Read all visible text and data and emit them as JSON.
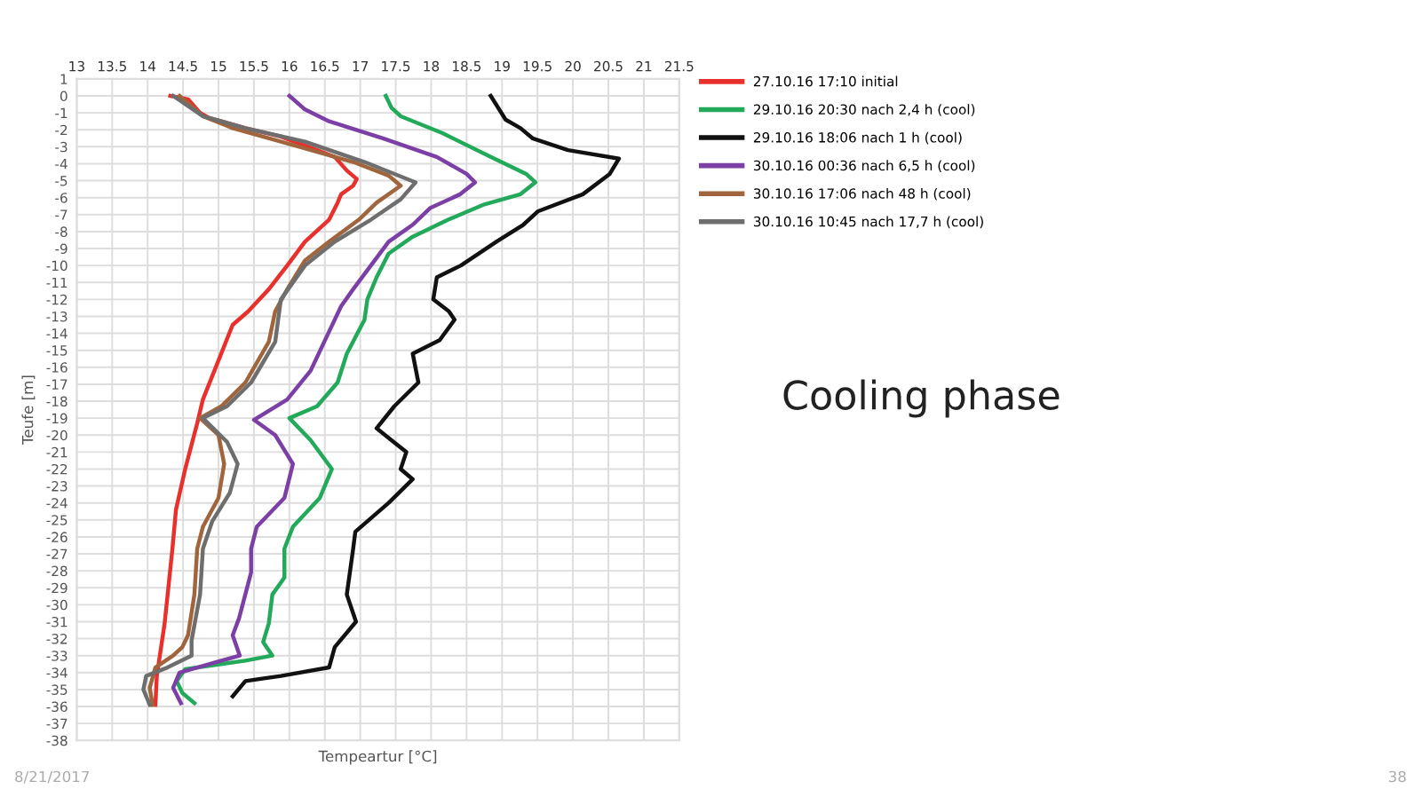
{
  "chart_data": {
    "type": "line",
    "title": "Cooling phase",
    "xlabel": "Tempeartur [°C]",
    "ylabel": "Teufe [m]",
    "annotations": [
      "8/21/2017",
      "38"
    ],
    "xlim": [
      13,
      21.5
    ],
    "xticks": [
      13,
      13.5,
      14,
      14.5,
      15,
      15.5,
      16,
      16.5,
      17,
      17.5,
      18,
      18.5,
      19,
      19.5,
      20,
      20.5,
      21,
      21.5
    ],
    "ylim": [
      -38,
      1
    ],
    "yticks": [
      -38,
      -37,
      -36,
      -35,
      -34,
      -33,
      -32,
      -31,
      -30,
      -29,
      -28,
      -27,
      -26,
      -25,
      -24,
      -23,
      -22,
      -21,
      -20,
      -19,
      -18,
      -17,
      -16,
      -15,
      -14,
      -13,
      -12,
      -11,
      -10,
      -9,
      -8,
      -7,
      -6,
      -5,
      -4,
      -3,
      -2,
      -1,
      0,
      1
    ],
    "grid": true,
    "legend": "right",
    "marker": "none",
    "line_style": "solid",
    "series": [
      {
        "name": "27.10.16 17:10 initial",
        "color": "#e8302c",
        "x": [
          14.32,
          14.57,
          14.74,
          14.87,
          15.38,
          15.88,
          16.39,
          16.64,
          16.81,
          16.95,
          16.9,
          16.73,
          16.68,
          16.56,
          16.22,
          15.97,
          15.71,
          15.42,
          15.2,
          15.0,
          14.78,
          14.7,
          14.53,
          14.4,
          14.35,
          14.24,
          14.13,
          14.11
        ],
        "values": [
          0,
          -0.2,
          -1,
          -1.3,
          -1.9,
          -2.4,
          -3.2,
          -3.6,
          -4.4,
          -4.9,
          -5.3,
          -5.8,
          -6.3,
          -7.3,
          -8.6,
          -10,
          -11.4,
          -12.7,
          -13.5,
          -15.6,
          -17.9,
          -19.3,
          -22,
          -24.4,
          -26.7,
          -31.1,
          -34.2,
          -35.9
        ]
      },
      {
        "name": "29.10.16 20:30 nach 2,4 h (cool)",
        "color": "#22a95a",
        "x": [
          17.36,
          17.44,
          17.57,
          18.16,
          18.84,
          19.34,
          19.47,
          19.26,
          18.75,
          18.24,
          17.74,
          17.4,
          17.23,
          17.1,
          17.06,
          16.81,
          16.68,
          16.39,
          16.0,
          16.3,
          16.6,
          16.43,
          16.05,
          15.93,
          15.93,
          15.76,
          15.71,
          15.63,
          15.76,
          15.38,
          14.53,
          14.41,
          14.49,
          14.66
        ],
        "values": [
          0,
          -0.7,
          -1.2,
          -2.2,
          -3.6,
          -4.6,
          -5.1,
          -5.8,
          -6.4,
          -7.3,
          -8.3,
          -9.3,
          -10.7,
          -12,
          -13.2,
          -15.2,
          -16.9,
          -18.3,
          -19,
          -20.3,
          -22,
          -23.7,
          -25.4,
          -26.7,
          -28.4,
          -29.4,
          -31.1,
          -32.2,
          -33,
          -33.3,
          -33.8,
          -34.5,
          -35.2,
          -35.8
        ]
      },
      {
        "name": "29.10.16 18:06 nach 1 h (cool)",
        "color": "#111111",
        "x": [
          18.84,
          19.05,
          19.26,
          19.43,
          19.93,
          20.65,
          20.52,
          20.14,
          19.51,
          19.3,
          18.92,
          18.42,
          18.08,
          18.03,
          18.25,
          18.33,
          18.12,
          17.74,
          17.82,
          17.48,
          17.23,
          17.44,
          17.65,
          17.57,
          17.74,
          17.4,
          16.93,
          16.9,
          16.81,
          16.94,
          16.64,
          16.56,
          15.88,
          15.38,
          15.2
        ],
        "values": [
          0,
          -1.4,
          -1.9,
          -2.5,
          -3.2,
          -3.7,
          -4.6,
          -5.8,
          -6.8,
          -7.6,
          -8.6,
          -10,
          -10.7,
          -12,
          -12.7,
          -13.2,
          -14.4,
          -15.2,
          -16.9,
          -18.3,
          -19.6,
          -20.3,
          -21,
          -22,
          -22.6,
          -24,
          -25.7,
          -26.7,
          -29.4,
          -31,
          -32.5,
          -33.7,
          -34.2,
          -34.5,
          -35.4
        ]
      },
      {
        "name": "30.10.16 00:36 nach 6,5 h (cool)",
        "color": "#7b3fa6",
        "x": [
          16.0,
          16.22,
          16.56,
          17.32,
          18.08,
          18.5,
          18.62,
          18.41,
          17.99,
          17.74,
          17.4,
          17.15,
          16.9,
          16.73,
          16.56,
          16.3,
          15.97,
          15.5,
          15.8,
          16.05,
          15.93,
          15.54,
          15.46,
          15.46,
          15.29,
          15.2,
          15.3,
          15.04,
          14.45,
          14.36,
          14.47
        ],
        "values": [
          0,
          -0.8,
          -1.5,
          -2.5,
          -3.6,
          -4.6,
          -5.1,
          -5.8,
          -6.6,
          -7.6,
          -8.6,
          -10,
          -11.4,
          -12.4,
          -13.9,
          -16.2,
          -17.9,
          -19.1,
          -20,
          -21.7,
          -23.7,
          -25.4,
          -26.7,
          -28.1,
          -30.8,
          -31.8,
          -33,
          -33.3,
          -34,
          -34.9,
          -35.8
        ]
      },
      {
        "name": "30.10.16 17:06 nach 48 h (cool)",
        "color": "#a0653c",
        "x": [
          14.45,
          14.78,
          15.2,
          16.05,
          16.9,
          17.4,
          17.57,
          17.23,
          16.98,
          16.56,
          16.22,
          15.97,
          15.8,
          15.71,
          15.38,
          15.04,
          14.74,
          15.0,
          15.08,
          15.0,
          14.78,
          14.7,
          14.66,
          14.57,
          14.49,
          14.36,
          14.11,
          14.03,
          14.07
        ],
        "values": [
          0,
          -1.2,
          -1.9,
          -2.9,
          -3.9,
          -4.7,
          -5.3,
          -6.3,
          -7.3,
          -8.6,
          -9.7,
          -11.4,
          -12.7,
          -14.5,
          -16.9,
          -18.3,
          -19,
          -20,
          -21.7,
          -23.7,
          -25.4,
          -26.7,
          -29.4,
          -31.8,
          -32.5,
          -33,
          -33.7,
          -34.9,
          -35.9
        ]
      },
      {
        "name": "30.10.16 10:45 nach 17,7 h (cool)",
        "color": "#6e6e6e",
        "x": [
          14.36,
          14.78,
          15.38,
          16.22,
          17.06,
          17.78,
          17.57,
          17.15,
          16.64,
          16.22,
          15.88,
          15.8,
          15.46,
          15.12,
          14.78,
          15.12,
          15.27,
          15.16,
          14.91,
          14.78,
          14.74,
          14.62,
          14.62,
          14.28,
          13.98,
          13.94,
          14.03
        ],
        "values": [
          0,
          -1.2,
          -1.9,
          -2.7,
          -3.9,
          -5.1,
          -6.1,
          -7.3,
          -8.6,
          -10,
          -12,
          -14.5,
          -16.9,
          -18.3,
          -19,
          -20.4,
          -21.7,
          -23.4,
          -25.1,
          -26.7,
          -29.4,
          -32.1,
          -33,
          -33.7,
          -34.2,
          -35,
          -35.9
        ]
      }
    ]
  }
}
